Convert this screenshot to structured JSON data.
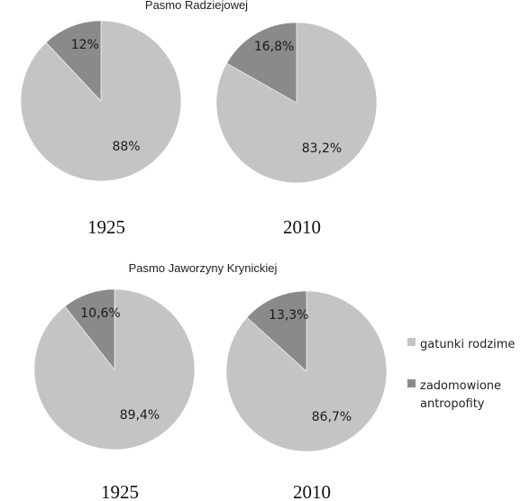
{
  "chart_data": [
    {
      "type": "pie",
      "title": "Pasmo Radziejowej",
      "charts": [
        {
          "label": "1925",
          "slices": [
            {
              "name": "gatunki rodzime",
              "value": 88,
              "label": "88%"
            },
            {
              "name": "zadomowione antropofity",
              "value": 12,
              "label": "12%"
            }
          ]
        },
        {
          "label": "2010",
          "slices": [
            {
              "name": "gatunki rodzime",
              "value": 83.2,
              "label": "83,2%"
            },
            {
              "name": "zadomowione antropofity",
              "value": 16.8,
              "label": "16,8%"
            }
          ]
        }
      ]
    },
    {
      "type": "pie",
      "title": "Pasmo Jaworzyny Krynickiej",
      "charts": [
        {
          "label": "1925",
          "slices": [
            {
              "name": "gatunki rodzime",
              "value": 89.4,
              "label": "89,4%"
            },
            {
              "name": "zadomowione antropofity",
              "value": 10.6,
              "label": "10,6%"
            }
          ]
        },
        {
          "label": "2010",
          "slices": [
            {
              "name": "gatunki rodzime",
              "value": 86.7,
              "label": "86,7%"
            },
            {
              "name": "zadomowione antropofity",
              "value": 13.3,
              "label": "13,3%"
            }
          ]
        }
      ]
    }
  ],
  "legend": {
    "placement": "right",
    "items": [
      {
        "lines": [
          "gatunki rodzime"
        ],
        "color": "#c4c4c4"
      },
      {
        "lines": [
          "zadomowione",
          "antropofity"
        ],
        "color": "#8a8a8a"
      }
    ]
  }
}
